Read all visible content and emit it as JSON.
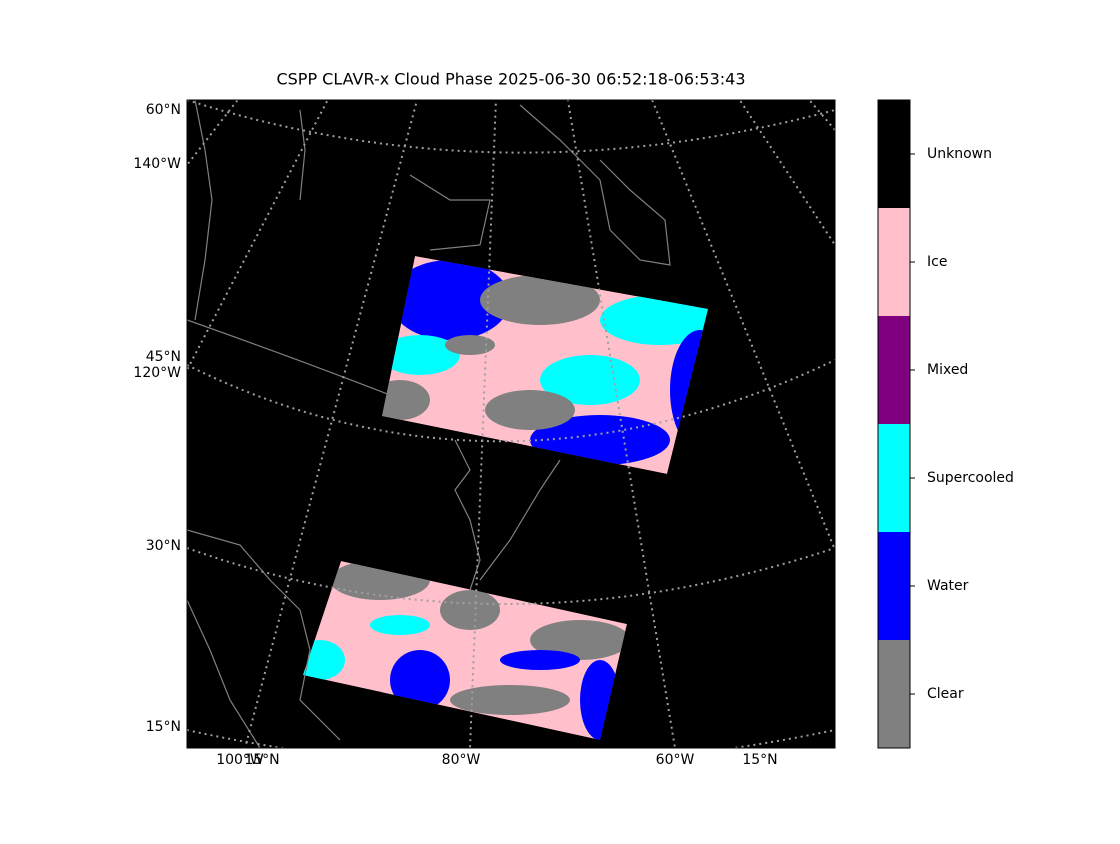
{
  "title": "CSPP CLAVR-x Cloud Phase 2025-06-30 06:52:18-06:53:43",
  "map": {
    "lat_labels": [
      "60°N",
      "45°N",
      "30°N",
      "15°N"
    ],
    "lon_labels_left": [
      "140°W",
      "120°W"
    ],
    "lon_labels_bottom": [
      "100°W",
      "15°N",
      "80°W",
      "60°W",
      "15°N"
    ]
  },
  "colorbar": {
    "classes": [
      {
        "label": "Unknown",
        "color": "#000000"
      },
      {
        "label": "Ice",
        "color": "#ffc0cb"
      },
      {
        "label": "Mixed",
        "color": "#800080"
      },
      {
        "label": "Supercooled",
        "color": "#00ffff"
      },
      {
        "label": "Water",
        "color": "#0000ff"
      },
      {
        "label": "Clear",
        "color": "#808080"
      }
    ]
  }
}
